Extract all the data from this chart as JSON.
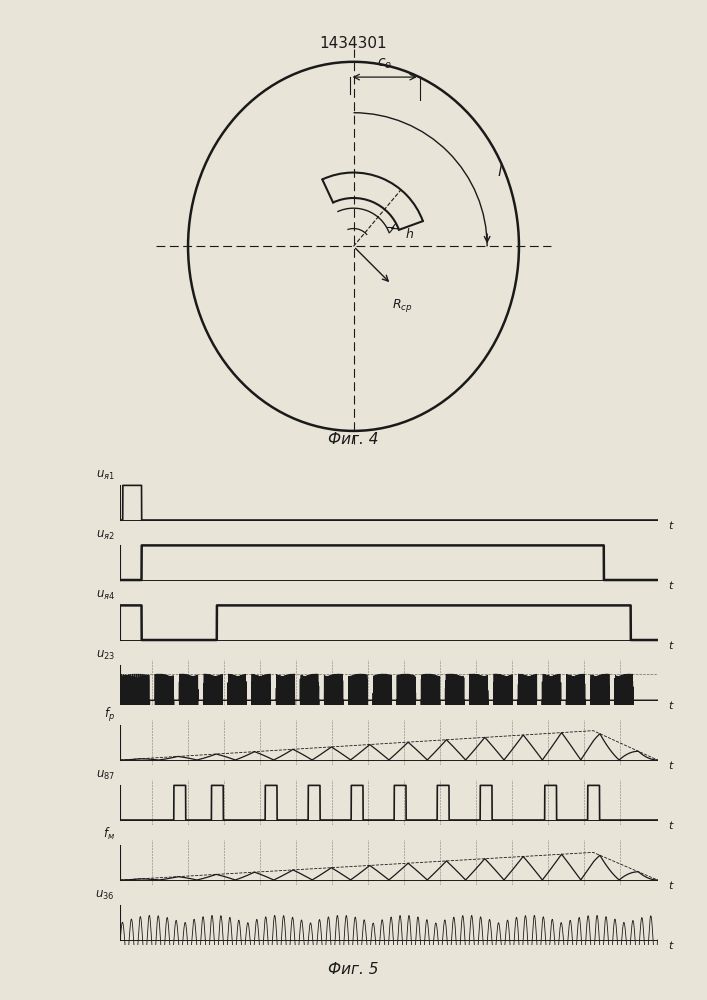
{
  "title": "1434301",
  "fig4_label": "Фиг. 4",
  "fig5_label": "Фиг. 5",
  "bg_color": "#e8e4d8",
  "line_color": "#1a1a1a"
}
